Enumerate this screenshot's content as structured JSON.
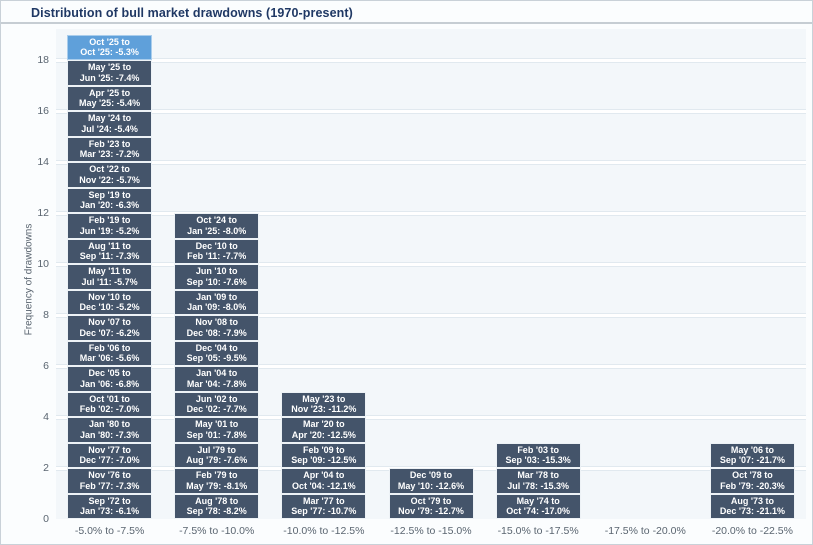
{
  "title": "Distribution of bull market drawdowns (1970-present)",
  "colors": {
    "block": "#44546A",
    "block_highlight": "#5FA0DA",
    "block_text": "#FFFFFF",
    "plot_background": "#F3F7FA",
    "gridline": "#FFFFFF",
    "axis_text": "#5A6570",
    "title_text": "#1F3864"
  },
  "chart_data": {
    "type": "bar",
    "subtype": "stacked-event-histogram",
    "title": "Distribution of bull market drawdowns (1970-present)",
    "xlabel": "",
    "ylabel": "Frequency of drawdowns",
    "ylim": [
      0,
      19.2
    ],
    "yticks": [
      0,
      2,
      4,
      6,
      8,
      10,
      12,
      14,
      16,
      18
    ],
    "grid": "horizontal",
    "legend": "none",
    "categories": [
      "-5.0% to -7.5%",
      "-7.5% to -10.0%",
      "-10.0% to -12.5%",
      "-12.5% to -15.0%",
      "-15.0% to -17.5%",
      "-17.5% to -20.0%",
      "-20.0% to -22.5%"
    ],
    "values": [
      19,
      12,
      5,
      2,
      3,
      0,
      3
    ],
    "bins": [
      {
        "label": "-5.0% to -7.5%",
        "count": 19,
        "events": [
          {
            "start": "Oct '25",
            "end": "Oct '25",
            "drawdown": "-5.3%",
            "highlight": true
          },
          {
            "start": "May '25",
            "end": "Jun '25",
            "drawdown": "-7.4%"
          },
          {
            "start": "Apr '25",
            "end": "May '25",
            "drawdown": "-5.4%"
          },
          {
            "start": "May '24",
            "end": "Jul '24",
            "drawdown": "-5.4%"
          },
          {
            "start": "Feb '23",
            "end": "Mar '23",
            "drawdown": "-7.2%"
          },
          {
            "start": "Oct '22",
            "end": "Nov '22",
            "drawdown": "-5.7%"
          },
          {
            "start": "Sep '19",
            "end": "Jan '20",
            "drawdown": "-6.3%"
          },
          {
            "start": "Feb '19",
            "end": "Jun '19",
            "drawdown": "-5.2%"
          },
          {
            "start": "Aug '11",
            "end": "Sep '11",
            "drawdown": "-7.3%"
          },
          {
            "start": "May '11",
            "end": "Jul '11",
            "drawdown": "-5.7%"
          },
          {
            "start": "Nov '10",
            "end": "Dec '10",
            "drawdown": "-5.2%"
          },
          {
            "start": "Nov '07",
            "end": "Dec '07",
            "drawdown": "-6.2%"
          },
          {
            "start": "Feb '06",
            "end": "Mar '06",
            "drawdown": "-5.6%"
          },
          {
            "start": "Dec '05",
            "end": "Jan '06",
            "drawdown": "-6.8%"
          },
          {
            "start": "Oct '01",
            "end": "Feb '02",
            "drawdown": "-7.0%"
          },
          {
            "start": "Jan '80",
            "end": "Jan '80",
            "drawdown": "-7.3%"
          },
          {
            "start": "Nov '77",
            "end": "Dec '77",
            "drawdown": "-7.0%"
          },
          {
            "start": "Nov '76",
            "end": "Feb '77",
            "drawdown": "-7.3%"
          },
          {
            "start": "Sep '72",
            "end": "Jan '73",
            "drawdown": "-6.1%"
          }
        ]
      },
      {
        "label": "-7.5% to -10.0%",
        "count": 12,
        "events": [
          {
            "start": "Oct '24",
            "end": "Jan '25",
            "drawdown": "-8.0%"
          },
          {
            "start": "Dec '10",
            "end": "Feb '11",
            "drawdown": "-7.7%"
          },
          {
            "start": "Jun '10",
            "end": "Sep '10",
            "drawdown": "-7.6%"
          },
          {
            "start": "Jan '09",
            "end": "Jan '09",
            "drawdown": "-8.0%"
          },
          {
            "start": "Nov '08",
            "end": "Dec '08",
            "drawdown": "-7.9%"
          },
          {
            "start": "Dec '04",
            "end": "Sep '05",
            "drawdown": "-9.5%"
          },
          {
            "start": "Jan '04",
            "end": "Mar '04",
            "drawdown": "-7.8%"
          },
          {
            "start": "Jun '02",
            "end": "Dec '02",
            "drawdown": "-7.7%"
          },
          {
            "start": "May '01",
            "end": "Sep '01",
            "drawdown": "-7.8%"
          },
          {
            "start": "Jul '79",
            "end": "Aug '79",
            "drawdown": "-7.6%"
          },
          {
            "start": "Feb '79",
            "end": "May '79",
            "drawdown": "-8.1%"
          },
          {
            "start": "Aug '78",
            "end": "Sep '78",
            "drawdown": "-8.2%"
          }
        ]
      },
      {
        "label": "-10.0% to -12.5%",
        "count": 5,
        "events": [
          {
            "start": "May '23",
            "end": "Nov '23",
            "drawdown": "-11.2%"
          },
          {
            "start": "Mar '20",
            "end": "Apr '20",
            "drawdown": "-12.5%"
          },
          {
            "start": "Feb '09",
            "end": "Sep '09",
            "drawdown": "-12.5%"
          },
          {
            "start": "Apr '04",
            "end": "Oct '04",
            "drawdown": "-12.1%"
          },
          {
            "start": "Mar '77",
            "end": "Sep '77",
            "drawdown": "-10.7%"
          }
        ]
      },
      {
        "label": "-12.5% to -15.0%",
        "count": 2,
        "events": [
          {
            "start": "Dec '09",
            "end": "May '10",
            "drawdown": "-12.6%"
          },
          {
            "start": "Oct '79",
            "end": "Nov '79",
            "drawdown": "-12.7%"
          }
        ]
      },
      {
        "label": "-15.0% to -17.5%",
        "count": 3,
        "events": [
          {
            "start": "Feb '03",
            "end": "Sep '03",
            "drawdown": "-15.3%"
          },
          {
            "start": "Mar '78",
            "end": "Jul '78",
            "drawdown": "-15.3%"
          },
          {
            "start": "May '74",
            "end": "Oct '74",
            "drawdown": "-17.0%"
          }
        ]
      },
      {
        "label": "-17.5% to -20.0%",
        "count": 0,
        "events": []
      },
      {
        "label": "-20.0% to -22.5%",
        "count": 3,
        "events": [
          {
            "start": "May '06",
            "end": "Sep '07",
            "drawdown": "-21.7%"
          },
          {
            "start": "Oct '78",
            "end": "Feb '79",
            "drawdown": "-20.3%"
          },
          {
            "start": "Aug '73",
            "end": "Dec '73",
            "drawdown": "-21.1%"
          }
        ]
      }
    ]
  }
}
